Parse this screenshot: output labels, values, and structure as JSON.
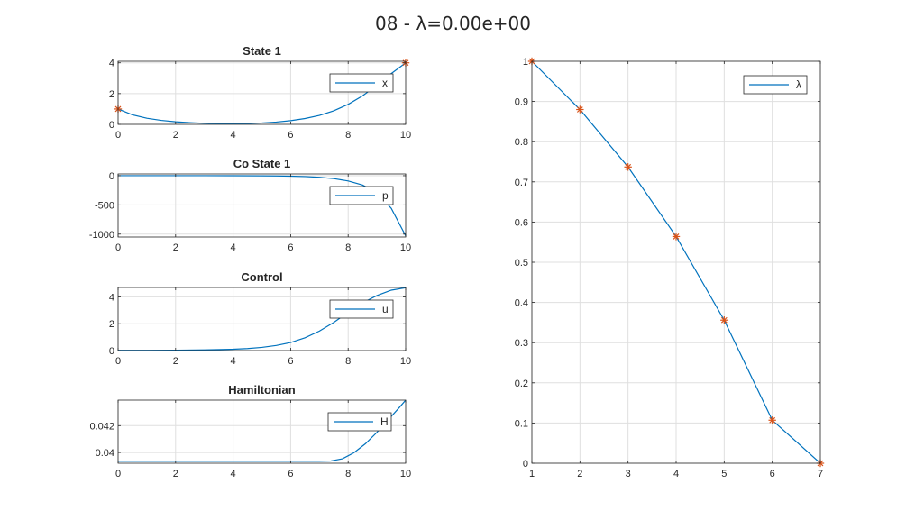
{
  "figure": {
    "title": "08 - λ=0.00e+00",
    "colors": {
      "line": "#0072bd",
      "marker": "#d95319",
      "axis": "#262626",
      "grid": "#dfdfdf"
    }
  },
  "chart_data": [
    {
      "id": "state1",
      "type": "line",
      "title": "State 1",
      "xlim": [
        0,
        10
      ],
      "ylim": [
        0,
        4.1
      ],
      "xticks": [
        0,
        2,
        4,
        6,
        8,
        10
      ],
      "yticks": [
        0,
        2,
        4
      ],
      "grid": true,
      "legend": {
        "placement": "top-right",
        "entries": [
          "x"
        ]
      },
      "series": [
        {
          "name": "x",
          "x": [
            0,
            0.5,
            1,
            1.5,
            2,
            2.5,
            3,
            3.5,
            4,
            4.5,
            5,
            5.5,
            6,
            6.5,
            7,
            7.5,
            8,
            8.5,
            9,
            9.5,
            10
          ],
          "y": [
            1.0,
            0.62,
            0.4,
            0.26,
            0.17,
            0.11,
            0.07,
            0.05,
            0.05,
            0.06,
            0.09,
            0.15,
            0.24,
            0.38,
            0.58,
            0.88,
            1.3,
            1.85,
            2.55,
            3.3,
            4.0
          ]
        }
      ],
      "markers": {
        "x": [
          0,
          10
        ],
        "y": [
          1,
          4
        ]
      }
    },
    {
      "id": "costate1",
      "type": "line",
      "title": "Co State 1",
      "xlim": [
        0,
        10
      ],
      "ylim": [
        -1050,
        30
      ],
      "xticks": [
        0,
        2,
        4,
        6,
        8,
        10
      ],
      "yticks": [
        -1000,
        -500,
        0
      ],
      "grid": true,
      "legend": {
        "placement": "top-right",
        "entries": [
          "p"
        ]
      },
      "series": [
        {
          "name": "p",
          "x": [
            0,
            1,
            2,
            3,
            4,
            5,
            5.5,
            6,
            6.5,
            7,
            7.5,
            8,
            8.5,
            9,
            9.5,
            10
          ],
          "y": [
            0,
            0,
            0,
            -0.2,
            -0.8,
            -3,
            -5,
            -9,
            -15,
            -28,
            -50,
            -90,
            -160,
            -290,
            -560,
            -1030
          ]
        }
      ]
    },
    {
      "id": "control",
      "type": "line",
      "title": "Control",
      "xlim": [
        0,
        10
      ],
      "ylim": [
        0,
        4.7
      ],
      "xticks": [
        0,
        2,
        4,
        6,
        8,
        10
      ],
      "yticks": [
        0,
        2,
        4
      ],
      "grid": true,
      "legend": {
        "placement": "top-right",
        "entries": [
          "u"
        ]
      },
      "series": [
        {
          "name": "u",
          "x": [
            0,
            1,
            2,
            3,
            4,
            4.5,
            5,
            5.5,
            6,
            6.5,
            7,
            7.5,
            8,
            8.5,
            9,
            9.5,
            10
          ],
          "y": [
            0.02,
            0.02,
            0.03,
            0.05,
            0.1,
            0.15,
            0.24,
            0.38,
            0.6,
            0.95,
            1.45,
            2.1,
            2.85,
            3.55,
            4.1,
            4.5,
            4.68
          ]
        }
      ]
    },
    {
      "id": "hamiltonian",
      "type": "line",
      "title": "Hamiltonian",
      "xlim": [
        0,
        10
      ],
      "ylim": [
        0.0392,
        0.0439
      ],
      "xticks": [
        0,
        2,
        4,
        6,
        8,
        10
      ],
      "yticks": [
        0.04,
        0.042
      ],
      "ytick_labels": [
        "0.04",
        "0.042"
      ],
      "grid": true,
      "legend": {
        "placement": "top-right",
        "entries": [
          "H"
        ]
      },
      "series": [
        {
          "name": "H",
          "x": [
            0,
            2,
            4,
            6,
            7,
            7.4,
            7.8,
            8.2,
            8.6,
            9,
            9.4,
            9.8,
            10
          ],
          "y": [
            0.03935,
            0.03935,
            0.03935,
            0.03935,
            0.03935,
            0.03937,
            0.03953,
            0.03998,
            0.04065,
            0.0415,
            0.04245,
            0.0434,
            0.0439
          ]
        }
      ]
    },
    {
      "id": "lambda",
      "type": "line",
      "title": "",
      "xlim": [
        1,
        7
      ],
      "ylim": [
        0,
        1
      ],
      "xticks": [
        1,
        2,
        3,
        4,
        5,
        6,
        7
      ],
      "yticks": [
        0,
        0.1,
        0.2,
        0.3,
        0.4,
        0.5,
        0.6,
        0.7,
        0.8,
        0.9,
        1
      ],
      "grid": true,
      "legend": {
        "placement": "top-right",
        "entries": [
          "λ"
        ]
      },
      "series": [
        {
          "name": "λ",
          "x": [
            1,
            2,
            3,
            4,
            5,
            6,
            7
          ],
          "y": [
            1.0,
            0.88,
            0.737,
            0.564,
            0.356,
            0.107,
            0.0
          ]
        }
      ],
      "markers": {
        "x": [
          1,
          2,
          3,
          4,
          5,
          6,
          7
        ],
        "y": [
          1.0,
          0.88,
          0.737,
          0.564,
          0.356,
          0.107,
          0.0
        ]
      }
    }
  ]
}
